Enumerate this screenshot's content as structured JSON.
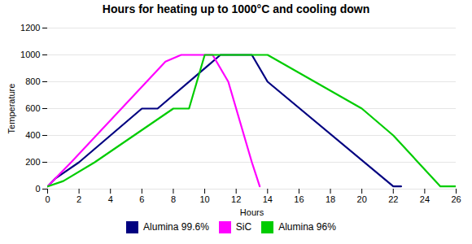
{
  "chart_data": {
    "type": "line",
    "title": "Hours for heating up to 1000°C and cooling down",
    "xlabel": "Hours",
    "ylabel": "Temperature",
    "xlim": [
      0,
      26
    ],
    "ylim": [
      0,
      1200
    ],
    "xticks": [
      0,
      2,
      4,
      6,
      8,
      10,
      12,
      14,
      16,
      18,
      20,
      22,
      24,
      26
    ],
    "yticks": [
      0,
      200,
      400,
      600,
      800,
      1000,
      1200
    ],
    "grid": "y",
    "legend": "bottom",
    "series": [
      {
        "name": "Alumina 99.6%",
        "color": "#000080",
        "x": [
          0,
          0.5,
          2,
          6,
          7,
          11,
          12,
          13,
          14,
          22,
          22.5
        ],
        "values": [
          20,
          80,
          200,
          600,
          600,
          1000,
          1000,
          1000,
          800,
          20,
          20
        ]
      },
      {
        "name": "SiC",
        "color": "#FF00FF",
        "x": [
          0,
          0.5,
          1.5,
          7.5,
          8.5,
          9.5,
          10.5,
          11.5,
          13,
          13.5
        ],
        "values": [
          20,
          80,
          200,
          950,
          1000,
          1000,
          1000,
          800,
          200,
          20
        ]
      },
      {
        "name": "Alumina 96%",
        "color": "#00CC00",
        "x": [
          0,
          1,
          3,
          8,
          9,
          10,
          13,
          14,
          20,
          22,
          25,
          26
        ],
        "values": [
          20,
          60,
          200,
          600,
          600,
          1000,
          1000,
          1000,
          600,
          400,
          20,
          20
        ]
      }
    ]
  }
}
